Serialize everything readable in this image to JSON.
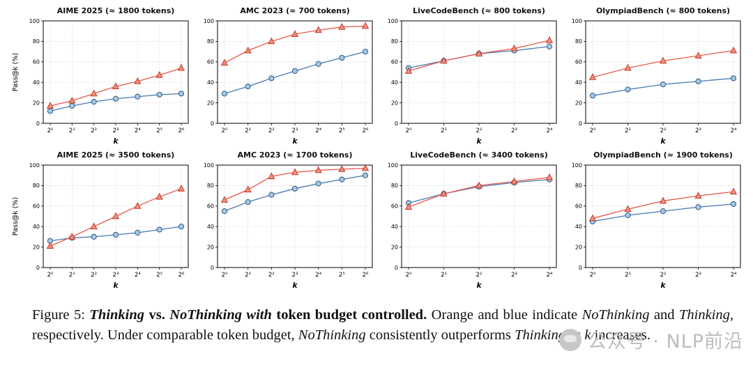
{
  "figure": {
    "caption_segments": [
      {
        "text": "Figure 5: ",
        "bold": false,
        "italic": false
      },
      {
        "text": "Thinking",
        "bold": true,
        "italic": true
      },
      {
        "text": " vs. ",
        "bold": true,
        "italic": false
      },
      {
        "text": "NoThinking with",
        "bold": true,
        "italic": true
      },
      {
        "text": " token budget controlled. ",
        "bold": true,
        "italic": false
      },
      {
        "text": " Orange and blue indicate ",
        "bold": false,
        "italic": false
      },
      {
        "text": "NoThinking",
        "bold": false,
        "italic": true
      },
      {
        "text": " and ",
        "bold": false,
        "italic": false
      },
      {
        "text": "Thinking",
        "bold": false,
        "italic": true
      },
      {
        "text": ", respectively. Under comparable token budget, ",
        "bold": false,
        "italic": false
      },
      {
        "text": "NoThinking",
        "bold": false,
        "italic": true
      },
      {
        "text": " consistently outperforms ",
        "bold": false,
        "italic": false
      },
      {
        "text": "Thinking",
        "bold": false,
        "italic": true
      },
      {
        "text": " as ",
        "bold": false,
        "italic": false
      },
      {
        "text": "k",
        "bold": false,
        "italic": true
      },
      {
        "text": " increases.",
        "bold": false,
        "italic": false
      }
    ],
    "watermark_text": "公众号 · NLP前沿"
  },
  "colors": {
    "nothinking_line": "#e8584a",
    "nothinking_marker_fill": "#f0907e",
    "nothinking_marker_edge": "#c53a2b",
    "thinking_line": "#4878b0",
    "thinking_marker_fill": "#a6c8e4",
    "thinking_marker_edge": "#2b5c8a",
    "grid": "#c8c8c8"
  },
  "chart_data": [
    {
      "type": "line",
      "title": "AIME 2025 (≈ 1800 tokens)",
      "xlabel": "k",
      "ylabel": "Pass@k (%)",
      "ylim": [
        0,
        100
      ],
      "yticks": [
        0,
        20,
        40,
        60,
        80,
        100
      ],
      "x_values": [
        1,
        2,
        4,
        8,
        16,
        32,
        64
      ],
      "x_ticklabels": [
        "2⁰",
        "2¹",
        "2²",
        "2³",
        "2⁴",
        "2⁵",
        "2⁶"
      ],
      "grid": true,
      "series": [
        {
          "name": "Thinking",
          "marker": "circle",
          "line_color": "#4878b0",
          "marker_fill": "#a6c8e4",
          "marker_edge": "#2b5c8a",
          "values": [
            12,
            17,
            21,
            24,
            26,
            28,
            29
          ]
        },
        {
          "name": "NoThinking",
          "marker": "triangle",
          "line_color": "#e8584a",
          "marker_fill": "#f0907e",
          "marker_edge": "#c53a2b",
          "values": [
            17,
            22,
            29,
            36,
            41,
            47,
            54
          ]
        }
      ]
    },
    {
      "type": "line",
      "title": "AMC 2023 (≈ 700 tokens)",
      "xlabel": "k",
      "ylabel": "",
      "ylim": [
        0,
        100
      ],
      "yticks": [
        0,
        20,
        40,
        60,
        80,
        100
      ],
      "x_values": [
        1,
        2,
        4,
        8,
        16,
        32,
        64
      ],
      "x_ticklabels": [
        "2⁰",
        "2¹",
        "2²",
        "2³",
        "2⁴",
        "2⁵",
        "2⁶"
      ],
      "grid": true,
      "series": [
        {
          "name": "Thinking",
          "marker": "circle",
          "line_color": "#4878b0",
          "marker_fill": "#a6c8e4",
          "marker_edge": "#2b5c8a",
          "values": [
            29,
            36,
            44,
            51,
            58,
            64,
            70
          ]
        },
        {
          "name": "NoThinking",
          "marker": "triangle",
          "line_color": "#e8584a",
          "marker_fill": "#f0907e",
          "marker_edge": "#c53a2b",
          "values": [
            59,
            71,
            80,
            87,
            91,
            94,
            95
          ]
        }
      ]
    },
    {
      "type": "line",
      "title": "LiveCodeBench (≈ 800 tokens)",
      "xlabel": "k",
      "ylabel": "",
      "ylim": [
        0,
        100
      ],
      "yticks": [
        0,
        20,
        40,
        60,
        80,
        100
      ],
      "x_values": [
        1,
        2,
        4,
        8,
        16
      ],
      "x_ticklabels": [
        "2⁰",
        "2¹",
        "2²",
        "2³",
        "2⁴"
      ],
      "grid": true,
      "series": [
        {
          "name": "Thinking",
          "marker": "circle",
          "line_color": "#4878b0",
          "marker_fill": "#a6c8e4",
          "marker_edge": "#2b5c8a",
          "values": [
            54,
            61,
            68,
            71,
            75
          ]
        },
        {
          "name": "NoThinking",
          "marker": "triangle",
          "line_color": "#e8584a",
          "marker_fill": "#f0907e",
          "marker_edge": "#c53a2b",
          "values": [
            51,
            61,
            68,
            73,
            81
          ]
        }
      ]
    },
    {
      "type": "line",
      "title": "OlympiadBench (≈ 800 tokens)",
      "xlabel": "k",
      "ylabel": "",
      "ylim": [
        0,
        100
      ],
      "yticks": [
        0,
        20,
        40,
        60,
        80,
        100
      ],
      "x_values": [
        1,
        2,
        4,
        8,
        16
      ],
      "x_ticklabels": [
        "2⁰",
        "2¹",
        "2²",
        "2³",
        "2⁴"
      ],
      "grid": true,
      "series": [
        {
          "name": "Thinking",
          "marker": "circle",
          "line_color": "#4878b0",
          "marker_fill": "#a6c8e4",
          "marker_edge": "#2b5c8a",
          "values": [
            27,
            33,
            38,
            41,
            44
          ]
        },
        {
          "name": "NoThinking",
          "marker": "triangle",
          "line_color": "#e8584a",
          "marker_fill": "#f0907e",
          "marker_edge": "#c53a2b",
          "values": [
            45,
            54,
            61,
            66,
            71
          ]
        }
      ]
    },
    {
      "type": "line",
      "title": "AIME 2025 (≈ 3500 tokens)",
      "xlabel": "k",
      "ylabel": "Pass@k (%)",
      "ylim": [
        0,
        100
      ],
      "yticks": [
        0,
        20,
        40,
        60,
        80,
        100
      ],
      "x_values": [
        1,
        2,
        4,
        8,
        16,
        32,
        64
      ],
      "x_ticklabels": [
        "2⁰",
        "2¹",
        "2²",
        "2³",
        "2⁴",
        "2⁵",
        "2⁶"
      ],
      "grid": true,
      "series": [
        {
          "name": "Thinking",
          "marker": "circle",
          "line_color": "#4878b0",
          "marker_fill": "#a6c8e4",
          "marker_edge": "#2b5c8a",
          "values": [
            26,
            29,
            30,
            32,
            34,
            37,
            40
          ]
        },
        {
          "name": "NoThinking",
          "marker": "triangle",
          "line_color": "#e8584a",
          "marker_fill": "#f0907e",
          "marker_edge": "#c53a2b",
          "values": [
            21,
            30,
            40,
            50,
            60,
            69,
            77
          ]
        }
      ]
    },
    {
      "type": "line",
      "title": "AMC 2023 (≈ 1700 tokens)",
      "xlabel": "k",
      "ylabel": "",
      "ylim": [
        0,
        100
      ],
      "yticks": [
        0,
        20,
        40,
        60,
        80,
        100
      ],
      "x_values": [
        1,
        2,
        4,
        8,
        16,
        32,
        64
      ],
      "x_ticklabels": [
        "2⁰",
        "2¹",
        "2²",
        "2³",
        "2⁴",
        "2⁵",
        "2⁶"
      ],
      "grid": true,
      "series": [
        {
          "name": "Thinking",
          "marker": "circle",
          "line_color": "#4878b0",
          "marker_fill": "#a6c8e4",
          "marker_edge": "#2b5c8a",
          "values": [
            55,
            64,
            71,
            77,
            82,
            86,
            90
          ]
        },
        {
          "name": "NoThinking",
          "marker": "triangle",
          "line_color": "#e8584a",
          "marker_fill": "#f0907e",
          "marker_edge": "#c53a2b",
          "values": [
            66,
            76,
            89,
            93,
            95,
            96,
            97
          ]
        }
      ]
    },
    {
      "type": "line",
      "title": "LiveCodeBench (≈ 3400 tokens)",
      "xlabel": "k",
      "ylabel": "",
      "ylim": [
        0,
        100
      ],
      "yticks": [
        0,
        20,
        40,
        60,
        80,
        100
      ],
      "x_values": [
        1,
        2,
        4,
        8,
        16
      ],
      "x_ticklabels": [
        "2⁰",
        "2¹",
        "2²",
        "2³",
        "2⁴"
      ],
      "grid": true,
      "series": [
        {
          "name": "Thinking",
          "marker": "circle",
          "line_color": "#4878b0",
          "marker_fill": "#a6c8e4",
          "marker_edge": "#2b5c8a",
          "values": [
            63,
            72,
            79,
            83,
            86
          ]
        },
        {
          "name": "NoThinking",
          "marker": "triangle",
          "line_color": "#e8584a",
          "marker_fill": "#f0907e",
          "marker_edge": "#c53a2b",
          "values": [
            59,
            72,
            80,
            84,
            88
          ]
        }
      ]
    },
    {
      "type": "line",
      "title": "OlympiadBench (≈ 1900 tokens)",
      "xlabel": "k",
      "ylabel": "",
      "ylim": [
        0,
        100
      ],
      "yticks": [
        0,
        20,
        40,
        60,
        80,
        100
      ],
      "x_values": [
        1,
        2,
        4,
        8,
        16
      ],
      "x_ticklabels": [
        "2⁰",
        "2¹",
        "2²",
        "2³",
        "2⁴"
      ],
      "grid": true,
      "series": [
        {
          "name": "Thinking",
          "marker": "circle",
          "line_color": "#4878b0",
          "marker_fill": "#a6c8e4",
          "marker_edge": "#2b5c8a",
          "values": [
            45,
            51,
            55,
            59,
            62
          ]
        },
        {
          "name": "NoThinking",
          "marker": "triangle",
          "line_color": "#e8584a",
          "marker_fill": "#f0907e",
          "marker_edge": "#c53a2b",
          "values": [
            48,
            57,
            65,
            70,
            74
          ]
        }
      ]
    }
  ]
}
